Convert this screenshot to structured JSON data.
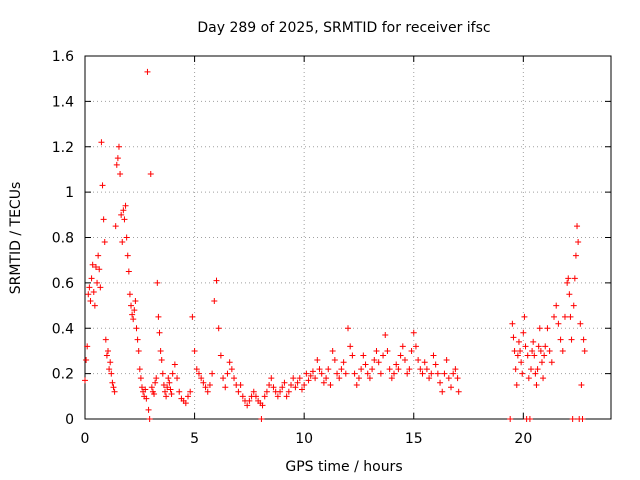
{
  "chart_data": {
    "type": "scatter",
    "title": "Day 289 of 2025, SRMTID for receiver ifsc",
    "xlabel": "GPS time / hours",
    "ylabel": "SRMTID / TECUs",
    "xlim": [
      0,
      24
    ],
    "ylim": [
      0,
      1.6
    ],
    "xticks": [
      0,
      5,
      10,
      15,
      20
    ],
    "xtick_labels": [
      "0",
      "5",
      "10",
      "15",
      "20"
    ],
    "yticks": [
      0,
      0.2,
      0.4,
      0.6,
      0.8,
      1,
      1.2,
      1.4,
      1.6
    ],
    "ytick_labels": [
      "0",
      "0.2",
      "0.4",
      "0.6",
      "0.8",
      "1",
      "1.2",
      "1.4",
      "1.6"
    ],
    "grid": true,
    "marker": "+",
    "series": [
      {
        "name": "SRMTID",
        "color": "#ff0000",
        "points": [
          [
            0.0,
            0.17
          ],
          [
            0.05,
            0.26
          ],
          [
            0.1,
            0.32
          ],
          [
            0.15,
            0.55
          ],
          [
            0.2,
            0.58
          ],
          [
            0.25,
            0.52
          ],
          [
            0.3,
            0.62
          ],
          [
            0.35,
            0.68
          ],
          [
            0.4,
            0.56
          ],
          [
            0.45,
            0.5
          ],
          [
            0.5,
            0.67
          ],
          [
            0.55,
            0.6
          ],
          [
            0.6,
            0.72
          ],
          [
            0.65,
            0.66
          ],
          [
            0.7,
            0.58
          ],
          [
            0.75,
            1.22
          ],
          [
            0.8,
            1.03
          ],
          [
            0.85,
            0.88
          ],
          [
            0.9,
            0.78
          ],
          [
            0.95,
            0.35
          ],
          [
            1.0,
            0.28
          ],
          [
            1.05,
            0.3
          ],
          [
            1.1,
            0.22
          ],
          [
            1.15,
            0.25
          ],
          [
            1.2,
            0.2
          ],
          [
            1.25,
            0.16
          ],
          [
            1.3,
            0.14
          ],
          [
            1.35,
            0.12
          ],
          [
            1.4,
            0.85
          ],
          [
            1.45,
            1.12
          ],
          [
            1.5,
            1.15
          ],
          [
            1.55,
            1.2
          ],
          [
            1.6,
            1.08
          ],
          [
            1.65,
            0.9
          ],
          [
            1.7,
            0.78
          ],
          [
            1.75,
            0.92
          ],
          [
            1.8,
            0.88
          ],
          [
            1.85,
            0.94
          ],
          [
            1.9,
            0.8
          ],
          [
            1.95,
            0.72
          ],
          [
            2.0,
            0.65
          ],
          [
            2.05,
            0.55
          ],
          [
            2.1,
            0.5
          ],
          [
            2.15,
            0.46
          ],
          [
            2.2,
            0.44
          ],
          [
            2.25,
            0.48
          ],
          [
            2.3,
            0.52
          ],
          [
            2.35,
            0.4
          ],
          [
            2.4,
            0.35
          ],
          [
            2.45,
            0.3
          ],
          [
            2.5,
            0.22
          ],
          [
            2.55,
            0.18
          ],
          [
            2.6,
            0.14
          ],
          [
            2.65,
            0.12
          ],
          [
            2.7,
            0.1
          ],
          [
            2.75,
            0.13
          ],
          [
            2.8,
            0.09
          ],
          [
            2.85,
            1.53
          ],
          [
            2.9,
            0.04
          ],
          [
            2.95,
            0.0
          ],
          [
            3.0,
            1.08
          ],
          [
            3.05,
            0.14
          ],
          [
            3.1,
            0.12
          ],
          [
            3.15,
            0.11
          ],
          [
            3.2,
            0.16
          ],
          [
            3.25,
            0.18
          ],
          [
            3.3,
            0.6
          ],
          [
            3.35,
            0.45
          ],
          [
            3.4,
            0.38
          ],
          [
            3.45,
            0.3
          ],
          [
            3.5,
            0.26
          ],
          [
            3.55,
            0.2
          ],
          [
            3.6,
            0.15
          ],
          [
            3.65,
            0.12
          ],
          [
            3.7,
            0.1
          ],
          [
            3.75,
            0.14
          ],
          [
            3.8,
            0.18
          ],
          [
            3.85,
            0.16
          ],
          [
            3.9,
            0.13
          ],
          [
            3.95,
            0.11
          ],
          [
            4.0,
            0.2
          ],
          [
            4.1,
            0.24
          ],
          [
            4.2,
            0.18
          ],
          [
            4.3,
            0.12
          ],
          [
            4.4,
            0.09
          ],
          [
            4.5,
            0.08
          ],
          [
            4.6,
            0.07
          ],
          [
            4.7,
            0.1
          ],
          [
            4.8,
            0.12
          ],
          [
            4.9,
            0.45
          ],
          [
            5.0,
            0.3
          ],
          [
            5.1,
            0.22
          ],
          [
            5.2,
            0.2
          ],
          [
            5.3,
            0.18
          ],
          [
            5.4,
            0.16
          ],
          [
            5.5,
            0.14
          ],
          [
            5.6,
            0.12
          ],
          [
            5.7,
            0.15
          ],
          [
            5.8,
            0.2
          ],
          [
            5.9,
            0.52
          ],
          [
            6.0,
            0.61
          ],
          [
            6.1,
            0.4
          ],
          [
            6.2,
            0.28
          ],
          [
            6.3,
            0.18
          ],
          [
            6.4,
            0.14
          ],
          [
            6.5,
            0.2
          ],
          [
            6.6,
            0.25
          ],
          [
            6.7,
            0.22
          ],
          [
            6.8,
            0.18
          ],
          [
            6.9,
            0.15
          ],
          [
            7.0,
            0.12
          ],
          [
            7.1,
            0.15
          ],
          [
            7.2,
            0.1
          ],
          [
            7.3,
            0.08
          ],
          [
            7.4,
            0.06
          ],
          [
            7.5,
            0.08
          ],
          [
            7.6,
            0.1
          ],
          [
            7.7,
            0.12
          ],
          [
            7.8,
            0.1
          ],
          [
            7.9,
            0.08
          ],
          [
            8.0,
            0.07
          ],
          [
            8.05,
            0.0
          ],
          [
            8.1,
            0.06
          ],
          [
            8.2,
            0.1
          ],
          [
            8.3,
            0.12
          ],
          [
            8.4,
            0.15
          ],
          [
            8.5,
            0.18
          ],
          [
            8.6,
            0.14
          ],
          [
            8.7,
            0.12
          ],
          [
            8.8,
            0.1
          ],
          [
            8.9,
            0.12
          ],
          [
            9.0,
            0.14
          ],
          [
            9.1,
            0.16
          ],
          [
            9.2,
            0.1
          ],
          [
            9.3,
            0.12
          ],
          [
            9.4,
            0.15
          ],
          [
            9.5,
            0.18
          ],
          [
            9.6,
            0.14
          ],
          [
            9.7,
            0.16
          ],
          [
            9.8,
            0.18
          ],
          [
            9.9,
            0.13
          ],
          [
            10.0,
            0.15
          ],
          [
            10.1,
            0.2
          ],
          [
            10.2,
            0.17
          ],
          [
            10.3,
            0.19
          ],
          [
            10.4,
            0.21
          ],
          [
            10.5,
            0.18
          ],
          [
            10.6,
            0.26
          ],
          [
            10.7,
            0.22
          ],
          [
            10.8,
            0.2
          ],
          [
            10.9,
            0.16
          ],
          [
            11.0,
            0.18
          ],
          [
            11.1,
            0.22
          ],
          [
            11.2,
            0.15
          ],
          [
            11.3,
            0.3
          ],
          [
            11.4,
            0.26
          ],
          [
            11.5,
            0.2
          ],
          [
            11.6,
            0.18
          ],
          [
            11.7,
            0.22
          ],
          [
            11.8,
            0.25
          ],
          [
            11.9,
            0.2
          ],
          [
            12.0,
            0.4
          ],
          [
            12.1,
            0.32
          ],
          [
            12.2,
            0.28
          ],
          [
            12.3,
            0.2
          ],
          [
            12.4,
            0.15
          ],
          [
            12.5,
            0.18
          ],
          [
            12.6,
            0.22
          ],
          [
            12.7,
            0.28
          ],
          [
            12.8,
            0.24
          ],
          [
            12.9,
            0.2
          ],
          [
            13.0,
            0.18
          ],
          [
            13.1,
            0.22
          ],
          [
            13.2,
            0.26
          ],
          [
            13.3,
            0.3
          ],
          [
            13.4,
            0.25
          ],
          [
            13.5,
            0.2
          ],
          [
            13.6,
            0.28
          ],
          [
            13.7,
            0.37
          ],
          [
            13.8,
            0.3
          ],
          [
            13.9,
            0.22
          ],
          [
            14.0,
            0.18
          ],
          [
            14.1,
            0.2
          ],
          [
            14.2,
            0.24
          ],
          [
            14.3,
            0.22
          ],
          [
            14.4,
            0.28
          ],
          [
            14.5,
            0.32
          ],
          [
            14.6,
            0.26
          ],
          [
            14.7,
            0.2
          ],
          [
            14.8,
            0.22
          ],
          [
            14.9,
            0.3
          ],
          [
            15.0,
            0.38
          ],
          [
            15.1,
            0.32
          ],
          [
            15.2,
            0.26
          ],
          [
            15.3,
            0.22
          ],
          [
            15.4,
            0.2
          ],
          [
            15.5,
            0.25
          ],
          [
            15.6,
            0.22
          ],
          [
            15.7,
            0.18
          ],
          [
            15.8,
            0.2
          ],
          [
            15.9,
            0.28
          ],
          [
            16.0,
            0.24
          ],
          [
            16.1,
            0.2
          ],
          [
            16.2,
            0.16
          ],
          [
            16.3,
            0.12
          ],
          [
            16.4,
            0.2
          ],
          [
            16.5,
            0.26
          ],
          [
            16.6,
            0.18
          ],
          [
            16.7,
            0.14
          ],
          [
            16.8,
            0.2
          ],
          [
            16.9,
            0.22
          ],
          [
            17.0,
            0.18
          ],
          [
            17.05,
            0.12
          ],
          [
            19.4,
            0.0
          ],
          [
            19.5,
            0.42
          ],
          [
            19.55,
            0.36
          ],
          [
            19.6,
            0.3
          ],
          [
            19.65,
            0.22
          ],
          [
            19.7,
            0.15
          ],
          [
            19.75,
            0.28
          ],
          [
            19.8,
            0.34
          ],
          [
            19.85,
            0.3
          ],
          [
            19.9,
            0.25
          ],
          [
            19.95,
            0.2
          ],
          [
            20.0,
            0.38
          ],
          [
            20.05,
            0.45
          ],
          [
            20.1,
            0.32
          ],
          [
            20.15,
            0.0
          ],
          [
            20.2,
            0.28
          ],
          [
            20.25,
            0.18
          ],
          [
            20.3,
            0.0
          ],
          [
            20.35,
            0.22
          ],
          [
            20.4,
            0.3
          ],
          [
            20.45,
            0.34
          ],
          [
            20.5,
            0.28
          ],
          [
            20.55,
            0.2
          ],
          [
            20.6,
            0.15
          ],
          [
            20.65,
            0.22
          ],
          [
            20.7,
            0.32
          ],
          [
            20.75,
            0.4
          ],
          [
            20.8,
            0.3
          ],
          [
            20.85,
            0.25
          ],
          [
            20.9,
            0.18
          ],
          [
            20.95,
            0.28
          ],
          [
            21.0,
            0.32
          ],
          [
            21.1,
            0.4
          ],
          [
            21.2,
            0.3
          ],
          [
            21.3,
            0.25
          ],
          [
            21.4,
            0.45
          ],
          [
            21.5,
            0.5
          ],
          [
            21.6,
            0.42
          ],
          [
            21.7,
            0.35
          ],
          [
            21.8,
            0.3
          ],
          [
            21.9,
            0.45
          ],
          [
            22.0,
            0.6
          ],
          [
            22.05,
            0.62
          ],
          [
            22.1,
            0.55
          ],
          [
            22.15,
            0.45
          ],
          [
            22.2,
            0.35
          ],
          [
            22.25,
            0.0
          ],
          [
            22.3,
            0.5
          ],
          [
            22.35,
            0.62
          ],
          [
            22.4,
            0.72
          ],
          [
            22.45,
            0.85
          ],
          [
            22.5,
            0.78
          ],
          [
            22.55,
            0.0
          ],
          [
            22.6,
            0.42
          ],
          [
            22.65,
            0.15
          ],
          [
            22.7,
            0.0
          ],
          [
            22.75,
            0.35
          ],
          [
            22.8,
            0.3
          ]
        ]
      }
    ]
  }
}
